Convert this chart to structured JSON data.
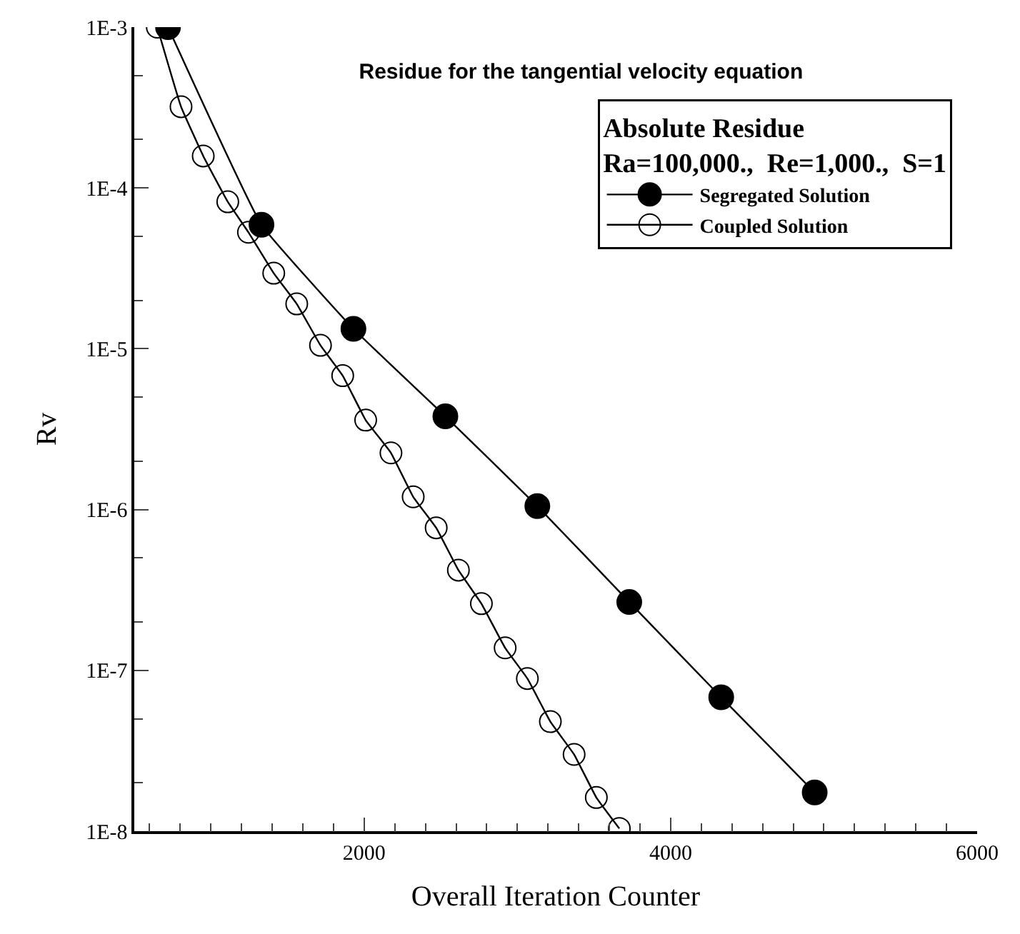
{
  "chart_data": {
    "type": "line",
    "title": "Residue for the tangential velocity equation",
    "xlabel": "Overall Iteration Counter",
    "ylabel": "Rv",
    "legend_title": "Absolute Residue\nRa=100,000.,  Re=1,000.,  S=1",
    "legend": "top right",
    "log": "y",
    "marker": "circle",
    "xlim": [
      500,
      6000
    ],
    "xticks": [
      2000,
      4000,
      6000
    ],
    "ylim": [
      1e-08,
      0.001
    ],
    "yticks": [
      {
        "value": 1e-08,
        "label": "1E-8"
      },
      {
        "value": 1e-07,
        "label": "1E-7"
      },
      {
        "value": 1e-06,
        "label": "1E-6"
      },
      {
        "value": 1e-05,
        "label": "1E-5"
      },
      {
        "value": 0.0001,
        "label": "1E-4"
      },
      {
        "value": 0.001,
        "label": "1E-3"
      }
    ],
    "series": [
      {
        "name": "Segregated Solution",
        "color": "#000000",
        "x": [
          720,
          1330,
          1930,
          2530,
          3130,
          3730,
          4330,
          4940
        ],
        "values": [
          0.001,
          5.9e-05,
          1.33e-05,
          3.8e-06,
          1.05e-06,
          2.66e-07,
          6.8e-08,
          1.74e-08
        ]
      },
      {
        "name": "Coupled Solution",
        "color": "#000000",
        "marker": "circle-open",
        "x": [
          650,
          805,
          950,
          1110,
          1245,
          1410,
          1560,
          1715,
          1860,
          2010,
          2175,
          2320,
          2470,
          2615,
          2765,
          2920,
          3065,
          3215,
          3370,
          3515,
          3665
        ],
        "values": [
          0.001,
          0.00032,
          0.000158,
          8.2e-05,
          5.3e-05,
          2.95e-05,
          1.9e-05,
          1.05e-05,
          6.8e-06,
          3.6e-06,
          2.25e-06,
          1.2e-06,
          7.7e-07,
          4.2e-07,
          2.6e-07,
          1.38e-07,
          8.9e-08,
          4.8e-08,
          3e-08,
          1.62e-08,
          1.04e-08
        ]
      }
    ]
  }
}
